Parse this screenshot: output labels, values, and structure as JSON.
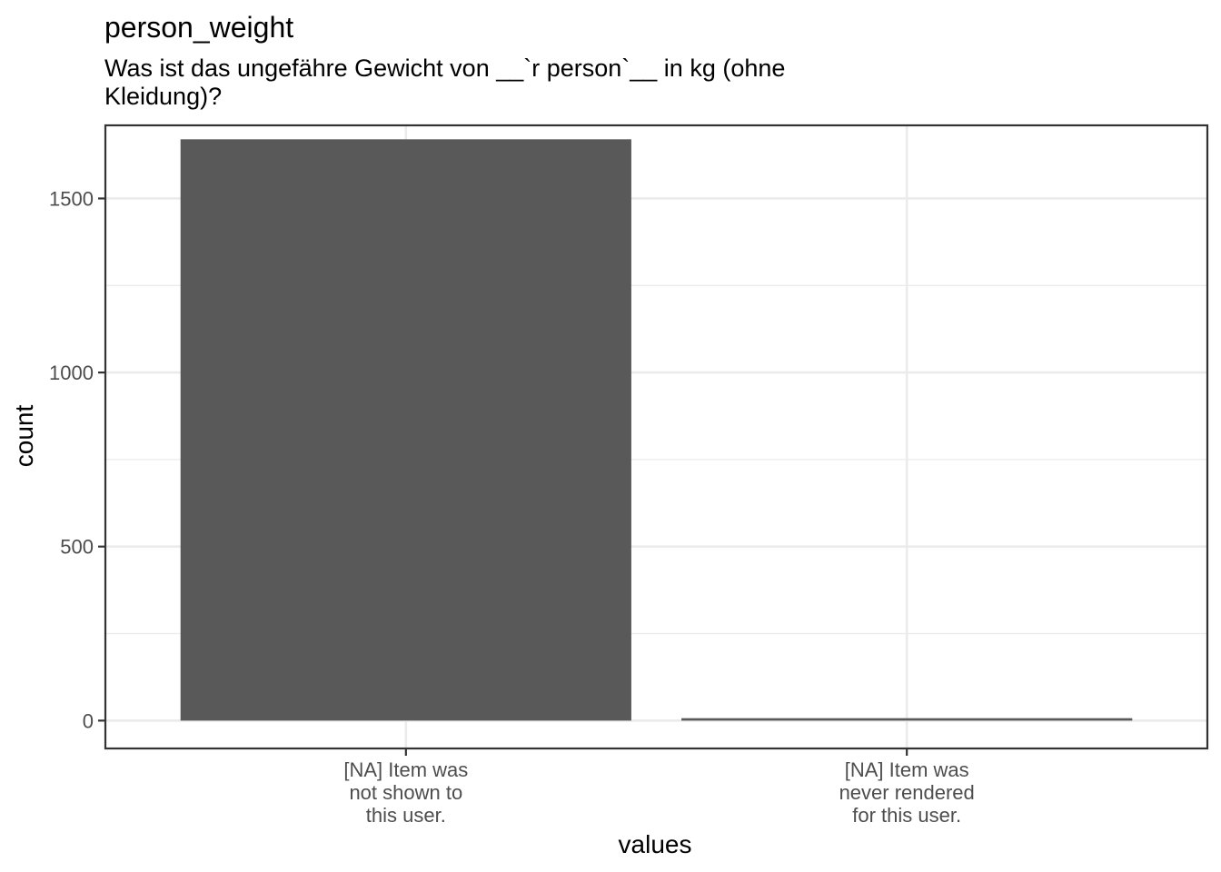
{
  "chart_data": {
    "type": "bar",
    "title": "person_weight",
    "subtitle_lines": [
      "Was ist das ungefähre Gewicht von __`r person`__ in kg (ohne",
      "Kleidung)?"
    ],
    "xlabel": "values",
    "ylabel": "count",
    "categories": [
      {
        "label_lines": [
          "[NA] Item was",
          "not shown to",
          "this user."
        ]
      },
      {
        "label_lines": [
          "[NA] Item was",
          "never rendered",
          "for this user."
        ]
      }
    ],
    "values": [
      1670,
      7
    ],
    "ylim": [
      -80,
      1710
    ],
    "yticks": [
      0,
      500,
      1000,
      1500
    ],
    "yminor": [
      250,
      750,
      1250
    ],
    "bar_color": "#595959",
    "grid": true,
    "legend": "none"
  }
}
